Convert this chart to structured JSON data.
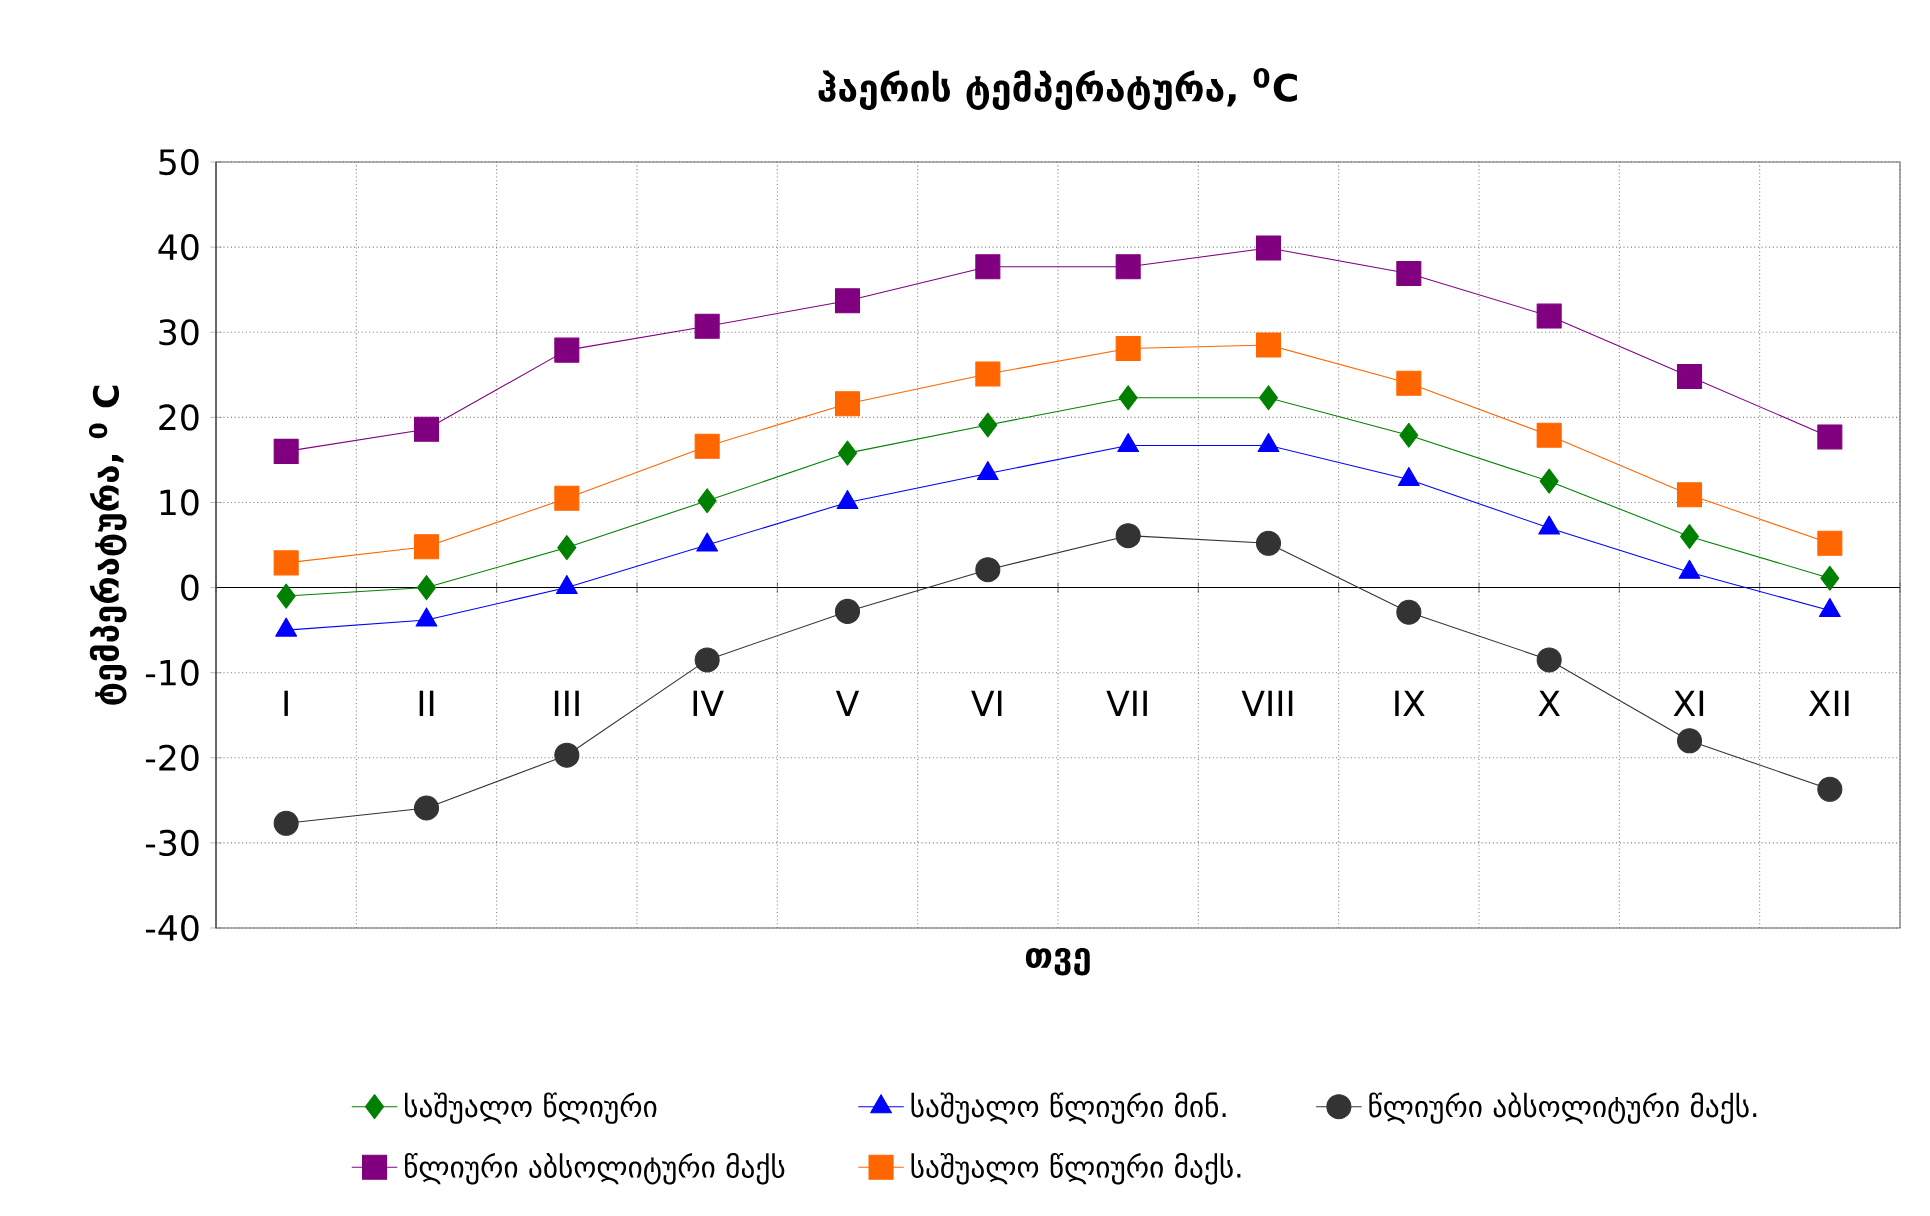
{
  "chart_data": {
    "type": "line",
    "title": "ჰაერის ტემპერატურა, $^{0}$C",
    "xlabel": "თვე",
    "ylabel": "ტემპერატურა, $^{0}$ C",
    "categories": [
      "I",
      "II",
      "III",
      "IV",
      "V",
      "VI",
      "VII",
      "VIII",
      "IX",
      "X",
      "XI",
      "XII"
    ],
    "ylim": [
      -40,
      50
    ],
    "yticks": [
      -40,
      -30,
      -20,
      -10,
      0,
      10,
      20,
      30,
      40,
      50
    ],
    "grid": true,
    "legend": "bottom",
    "series": [
      {
        "name": "საშუალო წლიური",
        "color": "#008000",
        "marker": "diamond",
        "values": [
          -1,
          0,
          4.7,
          10.2,
          15.8,
          19.1,
          22.3,
          22.3,
          17.9,
          12.5,
          6,
          1.1
        ]
      },
      {
        "name": "საშუალო წლიური მინ.",
        "color": "#0000ff",
        "marker": "triangle",
        "values": [
          -5,
          -3.8,
          0,
          5,
          10,
          13.4,
          16.7,
          16.7,
          12.7,
          7,
          1.8,
          -2.7
        ]
      },
      {
        "name": "წლიური აბსოლიტური მაქს.",
        "color": "#333333",
        "marker": "circle",
        "values": [
          -27.7,
          -25.9,
          -19.7,
          -8.5,
          -2.8,
          2.1,
          6.1,
          5.2,
          -2.9,
          -8.5,
          -18,
          -23.7
        ]
      },
      {
        "name": "წლიური აბსოლიტური მაქს",
        "color": "#800080",
        "marker": "square",
        "values": [
          16,
          18.6,
          27.9,
          30.7,
          33.7,
          37.7,
          37.7,
          39.9,
          36.9,
          31.9,
          24.8,
          17.7
        ]
      },
      {
        "name": "საშუალო წლიური მაქს.",
        "color": "#ff6600",
        "marker": "square",
        "values": [
          2.9,
          4.8,
          10.5,
          16.6,
          21.6,
          25.1,
          28.1,
          28.5,
          24,
          17.9,
          10.9,
          5.2
        ]
      }
    ]
  }
}
